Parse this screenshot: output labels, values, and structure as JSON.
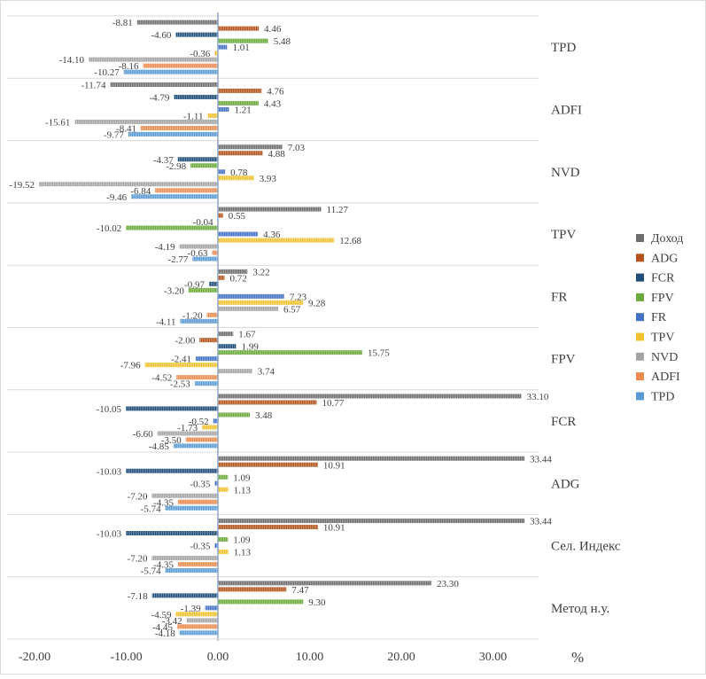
{
  "chart_data": {
    "type": "bar",
    "orientation": "horizontal",
    "title": "",
    "xlabel": "%",
    "ylabel": "",
    "xlim": [
      -20,
      35
    ],
    "x_ticks": [
      -20,
      -10,
      0,
      10,
      20,
      30
    ],
    "x_tick_labels": [
      "-20.00",
      "-10.00",
      "0.00",
      "10.00",
      "20.00",
      "30.00"
    ],
    "grid": false,
    "legend_position": "right",
    "categories": [
      "TPD",
      "ADFI",
      "NVD",
      "TPV",
      "FR",
      "FPV",
      "FCR",
      "ADG",
      "Сел. Индекс",
      "Метод н.у."
    ],
    "series": [
      {
        "name": "Доход",
        "color": "#6e6e6e",
        "values": [
          -8.81,
          -11.74,
          7.03,
          11.27,
          3.22,
          1.67,
          33.1,
          33.44,
          33.44,
          23.3
        ]
      },
      {
        "name": "ADG",
        "color": "#b4541c",
        "values": [
          4.46,
          4.76,
          4.88,
          0.55,
          0.72,
          -2.0,
          10.77,
          10.91,
          10.91,
          7.47
        ]
      },
      {
        "name": "FCR",
        "color": "#1f4e79",
        "values": [
          -4.6,
          -4.79,
          -4.37,
          -0.04,
          -0.97,
          1.99,
          -10.05,
          -10.03,
          -10.03,
          -7.18
        ]
      },
      {
        "name": "FPV",
        "color": "#6aaa3a",
        "values": [
          5.48,
          4.43,
          -2.98,
          -10.02,
          -3.2,
          15.75,
          3.48,
          1.09,
          1.09,
          9.3
        ]
      },
      {
        "name": "FR",
        "color": "#4472c4",
        "values": [
          1.01,
          1.21,
          0.78,
          4.36,
          7.23,
          -2.41,
          -0.52,
          -0.35,
          -0.35,
          -1.39
        ]
      },
      {
        "name": "TPV",
        "color": "#f2c12e",
        "values": [
          -0.36,
          -1.11,
          3.93,
          12.68,
          9.28,
          -7.96,
          -1.73,
          1.13,
          1.13,
          -4.59
        ]
      },
      {
        "name": "NVD",
        "color": "#a5a5a5",
        "values": [
          -14.1,
          -15.61,
          -19.52,
          -4.19,
          6.57,
          3.74,
          -6.6,
          -7.2,
          -7.2,
          -3.42
        ]
      },
      {
        "name": "ADFI",
        "color": "#ed8a4e",
        "values": [
          -8.16,
          -8.41,
          -6.84,
          -0.63,
          -1.2,
          -4.52,
          -3.5,
          -4.35,
          -4.35,
          -4.45
        ]
      },
      {
        "name": "TPD",
        "color": "#5b9bd5",
        "values": [
          -10.27,
          -9.77,
          -9.46,
          -2.77,
          -4.11,
          -2.53,
          -4.85,
          -5.74,
          -5.74,
          -4.18
        ]
      }
    ]
  }
}
